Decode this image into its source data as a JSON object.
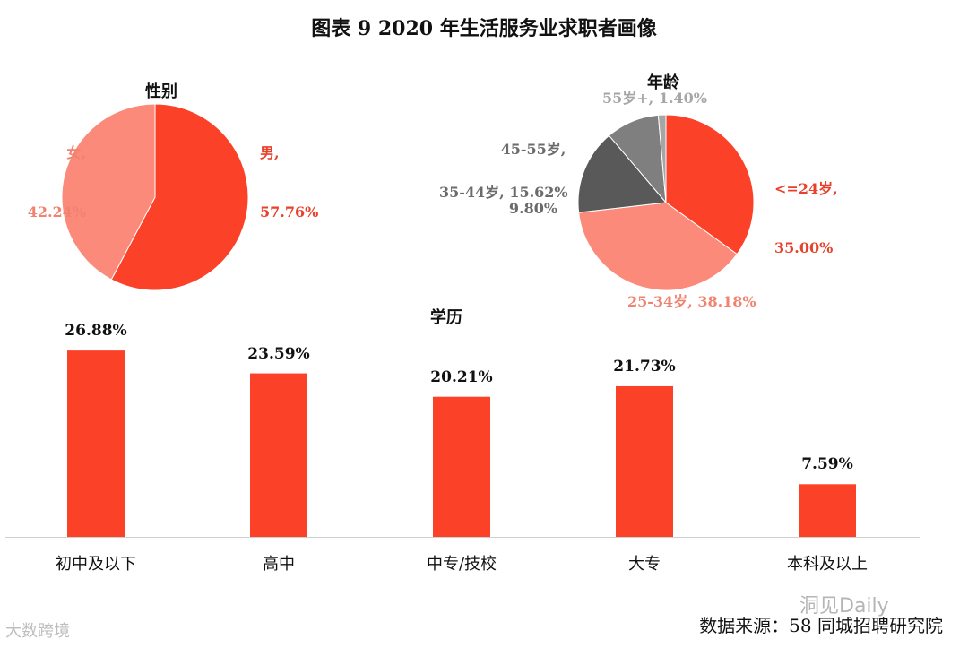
{
  "page_title": "图表 9   2020 年生活服务业求职者画像",
  "source": "数据来源：58 同城招聘研究院",
  "watermarks": {
    "left": "大数跨境",
    "right": "洞见Daily"
  },
  "colors": {
    "red": "#fc4129",
    "pink": "#fb8a7b",
    "dark_gray": "#595959",
    "gray": "#7f7f7f",
    "light_gray": "#a6a6a6",
    "label_red": "#e8412b",
    "label_pink": "#f0826f",
    "label_gray": "#6b6b6b"
  },
  "chart_data": [
    {
      "type": "pie",
      "title": "性别",
      "slices": [
        {
          "name": "男",
          "value": 57.76,
          "label_name": "男,",
          "label_value": "57.76%"
        },
        {
          "name": "女",
          "value": 42.24,
          "label_name": "女,",
          "label_value": "42.24%"
        }
      ]
    },
    {
      "type": "pie",
      "title": "年龄",
      "slices": [
        {
          "name": "<=24岁",
          "value": 35.0,
          "label_name": "<=24岁,",
          "label_value": "35.00%"
        },
        {
          "name": "25-34岁",
          "value": 38.18,
          "label_text": "25-34岁, 38.18%"
        },
        {
          "name": "35-44岁",
          "value": 15.62,
          "label_text": "35-44岁, 15.62%"
        },
        {
          "name": "45-55岁",
          "value": 9.8,
          "label_name": "45-55岁,",
          "label_value": "9.80%"
        },
        {
          "name": "55岁+",
          "value": 1.4,
          "label_text": "55岁+, 1.40%"
        }
      ]
    },
    {
      "type": "bar",
      "title": "学历",
      "categories": [
        "初中及以下",
        "高中",
        "中专/技校",
        "大专",
        "本科及以上"
      ],
      "values": [
        26.88,
        23.59,
        20.21,
        21.73,
        7.59
      ],
      "value_labels": [
        "26.88%",
        "23.59%",
        "20.21%",
        "21.73%",
        "7.59%"
      ],
      "ylim": [
        0,
        30
      ]
    }
  ]
}
